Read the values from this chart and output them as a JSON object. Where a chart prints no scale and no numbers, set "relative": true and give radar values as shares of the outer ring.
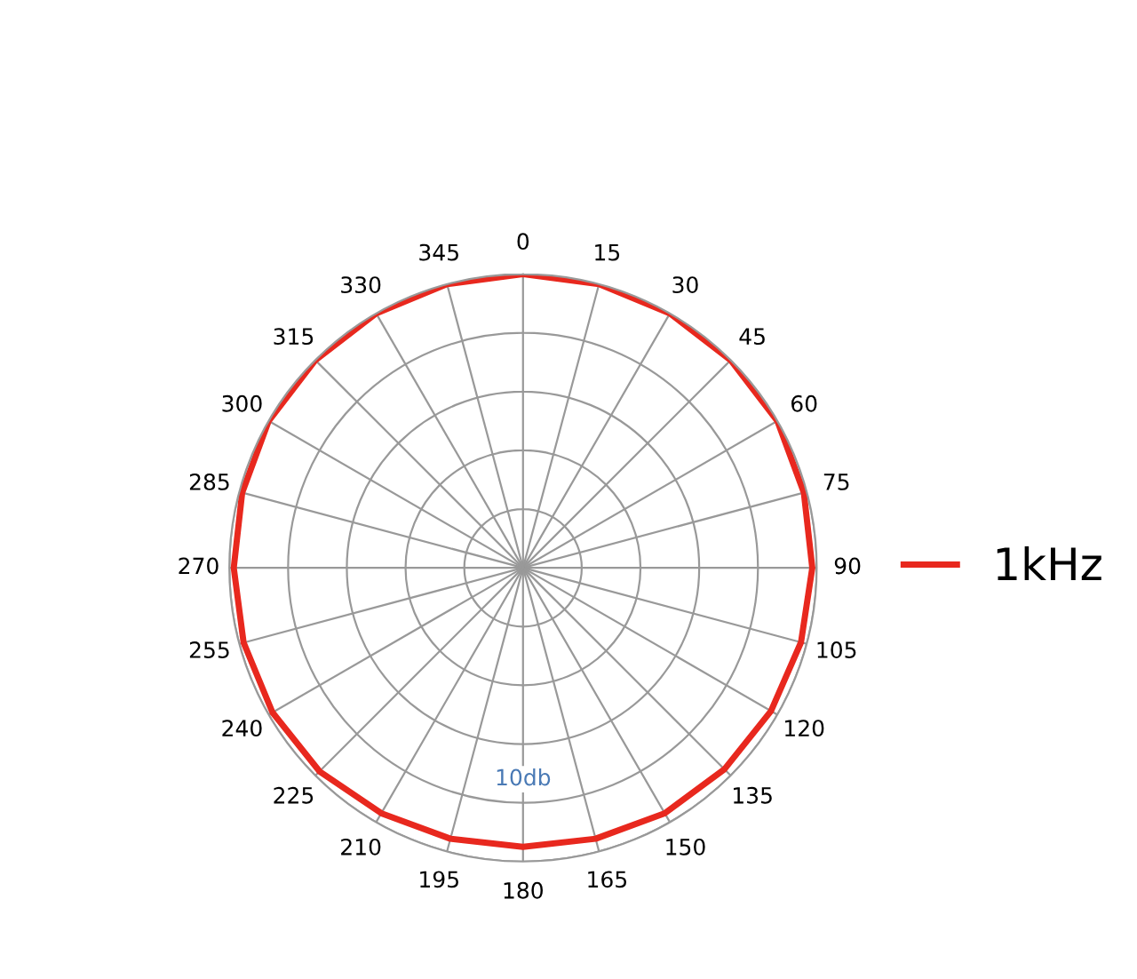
{
  "chart_data": {
    "type": "radar",
    "relative": true,
    "grid": true,
    "legend": "right",
    "marker": "none",
    "categories": [
      "0",
      "15",
      "30",
      "45",
      "60",
      "75",
      "90",
      "105",
      "120",
      "135",
      "150",
      "165",
      "180",
      "195",
      "210",
      "225",
      "240",
      "255",
      "270",
      "285",
      "300",
      "315",
      "330",
      "345"
    ],
    "series": [
      {
        "name": "1kHz",
        "color": "#e8281e",
        "values": [
          1.0,
          1.0,
          1.0,
          1.0,
          1.0,
          0.99,
          0.985,
          0.98,
          0.975,
          0.97,
          0.965,
          0.955,
          0.95,
          0.955,
          0.965,
          0.98,
          0.985,
          0.985,
          0.985,
          0.99,
          1.0,
          1.0,
          1.0,
          1.0
        ]
      }
    ],
    "annotations": [
      "10db"
    ]
  }
}
